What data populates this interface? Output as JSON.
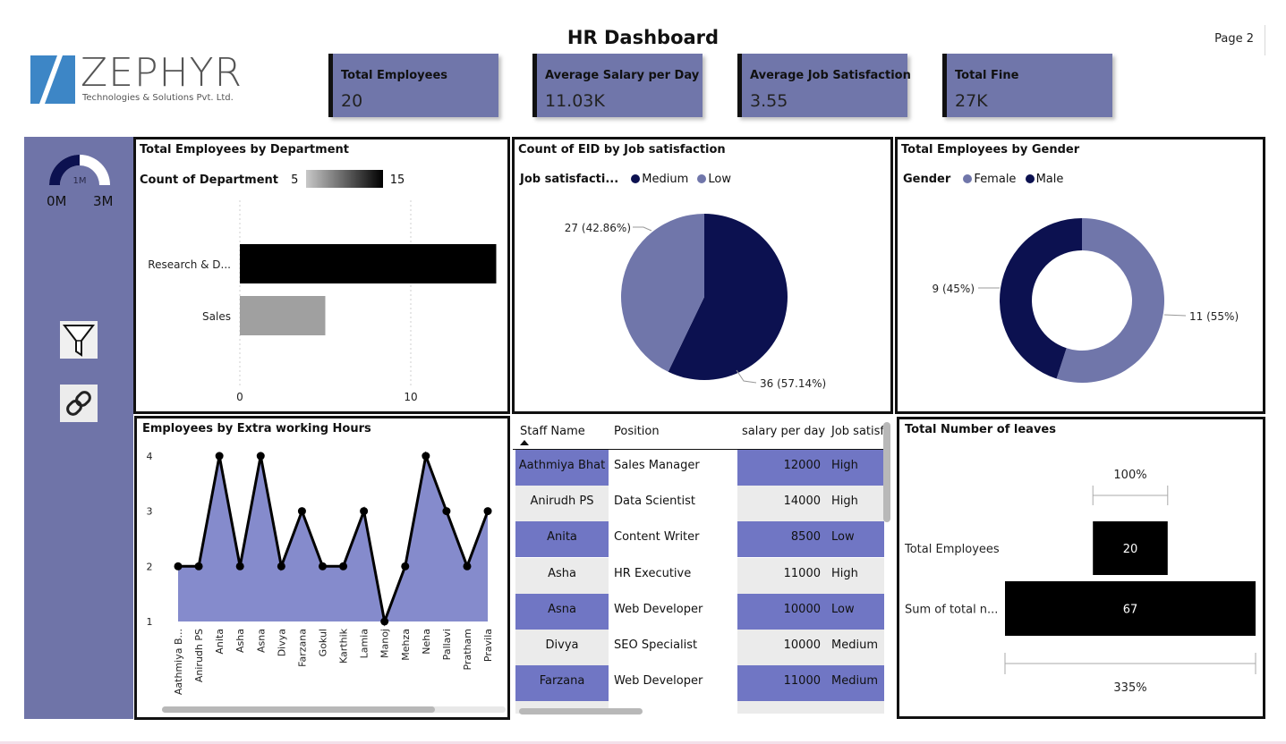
{
  "header": {
    "title": "HR Dashboard",
    "page_label": "Page 2",
    "logo_name": "ZEPHYR",
    "logo_tagline": "Technologies & Solutions Pvt. Ltd."
  },
  "kpis": [
    {
      "label": "Total Employees",
      "value": "20"
    },
    {
      "label": "Average Salary per Day",
      "value": "11.03K"
    },
    {
      "label": "Average Job Satisfaction",
      "value": "3.55"
    },
    {
      "label": "Total Fine",
      "value": "27K"
    }
  ],
  "sidebar": {
    "gauge": {
      "center_label": "1M",
      "min_label": "0M",
      "max_label": "3M",
      "fill_fraction": 0.5
    },
    "icons": [
      "filter-icon",
      "link-icon"
    ]
  },
  "colors": {
    "accent": "#6f74a8",
    "navy": "#0c1150",
    "light_purple": "#7076aa",
    "row_highlight": "#7076c4",
    "area": "#858bcc"
  },
  "chart_data": [
    {
      "type": "bar",
      "title": "Total Employees by Department",
      "legend_title": "Count of Department",
      "gradient_min": "5",
      "gradient_max": "15",
      "categories": [
        "Research & D...",
        "Sales"
      ],
      "values": [
        15,
        5
      ],
      "xlim": [
        0,
        15
      ],
      "xticks": [
        "0",
        "10"
      ]
    },
    {
      "type": "pie",
      "title": "Count of EID by Job satisfaction",
      "legend_title": "Job satisfacti...",
      "labels": [
        "Medium",
        "Low"
      ],
      "values": [
        36,
        27
      ],
      "data_labels": [
        "36 (57.14%)",
        "27 (42.86%)"
      ],
      "colors": [
        "#0c1150",
        "#7076aa"
      ]
    },
    {
      "type": "pie",
      "title": "Total Employees by Gender",
      "legend_title": "Gender",
      "labels": [
        "Female",
        "Male"
      ],
      "values": [
        11,
        9
      ],
      "data_labels": [
        "11 (55%)",
        "9 (45%)"
      ],
      "colors": [
        "#7076aa",
        "#0c1150"
      ]
    },
    {
      "type": "area",
      "title": "Employees by Extra working Hours",
      "categories": [
        "Aathmiya B...",
        "Anirudh PS",
        "Anita",
        "Asha",
        "Asna",
        "Divya",
        "Farzana",
        "Gokul",
        "Karthik",
        "Lamia",
        "Manoj",
        "Mehza",
        "Neha",
        "Pallavi",
        "Pratham",
        "Pravila"
      ],
      "values": [
        2,
        2,
        4,
        2,
        4,
        2,
        3,
        2,
        2,
        3,
        1,
        2,
        4,
        3,
        2,
        3
      ],
      "yticks": [
        "1",
        "2",
        "3",
        "4"
      ],
      "ylim": [
        1,
        4
      ]
    },
    {
      "type": "bar",
      "title": "Total Number of leaves",
      "categories": [
        "Total Employees",
        "Sum of total n..."
      ],
      "values": [
        20,
        67
      ],
      "data_labels": [
        "20",
        "67"
      ],
      "percent_top": "100%",
      "percent_bottom": "335%"
    }
  ],
  "table": {
    "columns": [
      "Staff Name",
      "Position",
      "salary per day",
      "Job satisf"
    ],
    "rows": [
      {
        "name": "Aathmiya Bhat",
        "position": "Sales Manager",
        "salary": "12000",
        "job": "High",
        "hl": true
      },
      {
        "name": "Anirudh PS",
        "position": "Data Scientist",
        "salary": "14000",
        "job": "High",
        "hl": false
      },
      {
        "name": "Anita",
        "position": "Content Writer",
        "salary": "8500",
        "job": "Low",
        "hl": true
      },
      {
        "name": "Asha",
        "position": "HR Executive",
        "salary": "11000",
        "job": "High",
        "hl": false
      },
      {
        "name": "Asna",
        "position": "Web Developer",
        "salary": "10000",
        "job": "Low",
        "hl": true
      },
      {
        "name": "Divya",
        "position": "SEO Specialist",
        "salary": "10000",
        "job": "Medium",
        "hl": false
      },
      {
        "name": "Farzana",
        "position": "Web Developer",
        "salary": "11000",
        "job": "Medium",
        "hl": true
      }
    ]
  }
}
